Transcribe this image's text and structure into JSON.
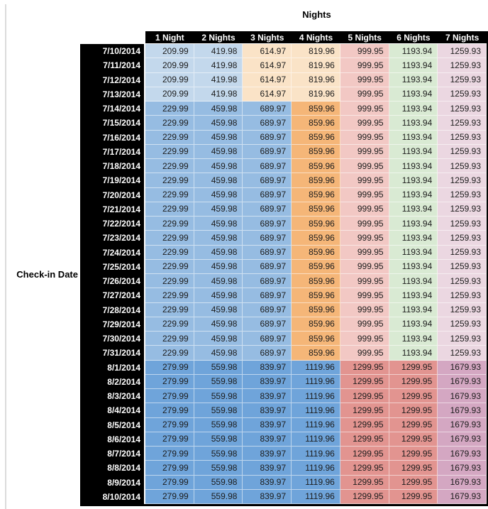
{
  "title": "Nights",
  "row_axis_label": "Check-in Date",
  "chart_data": {
    "type": "table",
    "title": "Nights",
    "row_axis_label": "Check-in Date",
    "columns": [
      "1 Night",
      "2 Nights",
      "3 Nights",
      "4 Nights",
      "5 Nights",
      "6 Nights",
      "7 Nights"
    ],
    "palette": {
      "header_bg": "#000000",
      "header_text": "#FFFFFF",
      "cell_text": "#1C1C1C",
      "sheet_edge_gray": "#DBDBDB",
      "g1_blue": "#C3D8EC",
      "g1_peach": "#FAE3C7",
      "g2_blue": "#96BCE2",
      "g2_orange": "#F5B678",
      "g3_blue": "#6FA4DA",
      "pink": "#F2C8C4",
      "salmon": "#E29490",
      "green": "#D9EAD3",
      "light_magenta": "#EBD7E1",
      "plum": "#D4A7C2"
    },
    "groups": {
      "g1": {
        "cell_colors": [
          "g1_blue",
          "g1_blue",
          "g1_peach",
          "g1_peach",
          "pink",
          "green",
          "light_magenta"
        ]
      },
      "g2": {
        "cell_colors": [
          "g2_blue",
          "g2_blue",
          "g2_blue",
          "g2_orange",
          "pink",
          "green",
          "light_magenta"
        ]
      },
      "g3": {
        "cell_colors": [
          "g3_blue",
          "g3_blue",
          "g3_blue",
          "g3_blue",
          "salmon",
          "salmon",
          "plum"
        ]
      }
    },
    "rows": [
      {
        "date": "7/10/2014",
        "group": "g1",
        "values": [
          "209.99",
          "419.98",
          "614.97",
          "819.96",
          "999.95",
          "1193.94",
          "1259.93"
        ]
      },
      {
        "date": "7/11/2014",
        "group": "g1",
        "values": [
          "209.99",
          "419.98",
          "614.97",
          "819.96",
          "999.95",
          "1193.94",
          "1259.93"
        ]
      },
      {
        "date": "7/12/2014",
        "group": "g1",
        "values": [
          "209.99",
          "419.98",
          "614.97",
          "819.96",
          "999.95",
          "1193.94",
          "1259.93"
        ]
      },
      {
        "date": "7/13/2014",
        "group": "g1",
        "values": [
          "209.99",
          "419.98",
          "614.97",
          "819.96",
          "999.95",
          "1193.94",
          "1259.93"
        ]
      },
      {
        "date": "7/14/2014",
        "group": "g2",
        "values": [
          "229.99",
          "459.98",
          "689.97",
          "859.96",
          "999.95",
          "1193.94",
          "1259.93"
        ]
      },
      {
        "date": "7/15/2014",
        "group": "g2",
        "values": [
          "229.99",
          "459.98",
          "689.97",
          "859.96",
          "999.95",
          "1193.94",
          "1259.93"
        ]
      },
      {
        "date": "7/16/2014",
        "group": "g2",
        "values": [
          "229.99",
          "459.98",
          "689.97",
          "859.96",
          "999.95",
          "1193.94",
          "1259.93"
        ]
      },
      {
        "date": "7/17/2014",
        "group": "g2",
        "values": [
          "229.99",
          "459.98",
          "689.97",
          "859.96",
          "999.95",
          "1193.94",
          "1259.93"
        ]
      },
      {
        "date": "7/18/2014",
        "group": "g2",
        "values": [
          "229.99",
          "459.98",
          "689.97",
          "859.96",
          "999.95",
          "1193.94",
          "1259.93"
        ]
      },
      {
        "date": "7/19/2014",
        "group": "g2",
        "values": [
          "229.99",
          "459.98",
          "689.97",
          "859.96",
          "999.95",
          "1193.94",
          "1259.93"
        ]
      },
      {
        "date": "7/20/2014",
        "group": "g2",
        "values": [
          "229.99",
          "459.98",
          "689.97",
          "859.96",
          "999.95",
          "1193.94",
          "1259.93"
        ]
      },
      {
        "date": "7/21/2014",
        "group": "g2",
        "values": [
          "229.99",
          "459.98",
          "689.97",
          "859.96",
          "999.95",
          "1193.94",
          "1259.93"
        ]
      },
      {
        "date": "7/22/2014",
        "group": "g2",
        "values": [
          "229.99",
          "459.98",
          "689.97",
          "859.96",
          "999.95",
          "1193.94",
          "1259.93"
        ]
      },
      {
        "date": "7/23/2014",
        "group": "g2",
        "values": [
          "229.99",
          "459.98",
          "689.97",
          "859.96",
          "999.95",
          "1193.94",
          "1259.93"
        ]
      },
      {
        "date": "7/24/2014",
        "group": "g2",
        "values": [
          "229.99",
          "459.98",
          "689.97",
          "859.96",
          "999.95",
          "1193.94",
          "1259.93"
        ]
      },
      {
        "date": "7/25/2014",
        "group": "g2",
        "values": [
          "229.99",
          "459.98",
          "689.97",
          "859.96",
          "999.95",
          "1193.94",
          "1259.93"
        ]
      },
      {
        "date": "7/26/2014",
        "group": "g2",
        "values": [
          "229.99",
          "459.98",
          "689.97",
          "859.96",
          "999.95",
          "1193.94",
          "1259.93"
        ]
      },
      {
        "date": "7/27/2014",
        "group": "g2",
        "values": [
          "229.99",
          "459.98",
          "689.97",
          "859.96",
          "999.95",
          "1193.94",
          "1259.93"
        ]
      },
      {
        "date": "7/28/2014",
        "group": "g2",
        "values": [
          "229.99",
          "459.98",
          "689.97",
          "859.96",
          "999.95",
          "1193.94",
          "1259.93"
        ]
      },
      {
        "date": "7/29/2014",
        "group": "g2",
        "values": [
          "229.99",
          "459.98",
          "689.97",
          "859.96",
          "999.95",
          "1193.94",
          "1259.93"
        ]
      },
      {
        "date": "7/30/2014",
        "group": "g2",
        "values": [
          "229.99",
          "459.98",
          "689.97",
          "859.96",
          "999.95",
          "1193.94",
          "1259.93"
        ]
      },
      {
        "date": "7/31/2014",
        "group": "g2",
        "values": [
          "229.99",
          "459.98",
          "689.97",
          "859.96",
          "999.95",
          "1193.94",
          "1259.93"
        ]
      },
      {
        "date": "8/1/2014",
        "group": "g3",
        "values": [
          "279.99",
          "559.98",
          "839.97",
          "1119.96",
          "1299.95",
          "1299.95",
          "1679.93"
        ]
      },
      {
        "date": "8/2/2014",
        "group": "g3",
        "values": [
          "279.99",
          "559.98",
          "839.97",
          "1119.96",
          "1299.95",
          "1299.95",
          "1679.93"
        ]
      },
      {
        "date": "8/3/2014",
        "group": "g3",
        "values": [
          "279.99",
          "559.98",
          "839.97",
          "1119.96",
          "1299.95",
          "1299.95",
          "1679.93"
        ]
      },
      {
        "date": "8/4/2014",
        "group": "g3",
        "values": [
          "279.99",
          "559.98",
          "839.97",
          "1119.96",
          "1299.95",
          "1299.95",
          "1679.93"
        ]
      },
      {
        "date": "8/5/2014",
        "group": "g3",
        "values": [
          "279.99",
          "559.98",
          "839.97",
          "1119.96",
          "1299.95",
          "1299.95",
          "1679.93"
        ]
      },
      {
        "date": "8/6/2014",
        "group": "g3",
        "values": [
          "279.99",
          "559.98",
          "839.97",
          "1119.96",
          "1299.95",
          "1299.95",
          "1679.93"
        ]
      },
      {
        "date": "8/7/2014",
        "group": "g3",
        "values": [
          "279.99",
          "559.98",
          "839.97",
          "1119.96",
          "1299.95",
          "1299.95",
          "1679.93"
        ]
      },
      {
        "date": "8/8/2014",
        "group": "g3",
        "values": [
          "279.99",
          "559.98",
          "839.97",
          "1119.96",
          "1299.95",
          "1299.95",
          "1679.93"
        ]
      },
      {
        "date": "8/9/2014",
        "group": "g3",
        "values": [
          "279.99",
          "559.98",
          "839.97",
          "1119.96",
          "1299.95",
          "1299.95",
          "1679.93"
        ]
      },
      {
        "date": "8/10/2014",
        "group": "g3",
        "values": [
          "279.99",
          "559.98",
          "839.97",
          "1119.96",
          "1299.95",
          "1299.95",
          "1679.93"
        ]
      }
    ]
  }
}
